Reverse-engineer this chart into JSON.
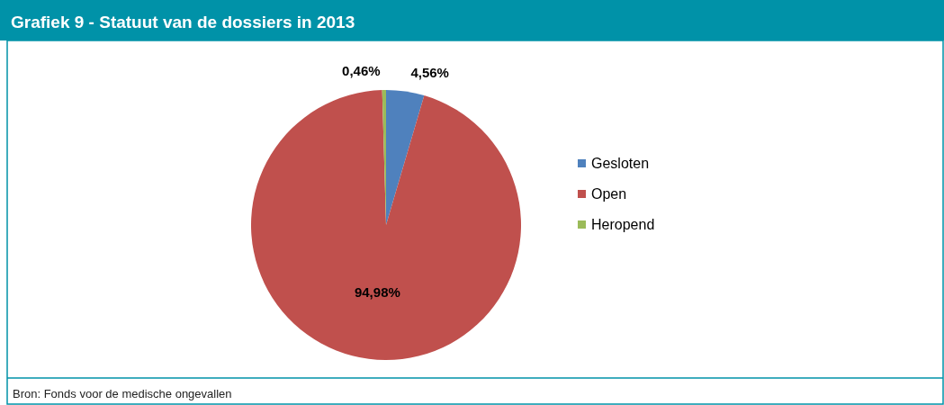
{
  "chart_data": {
    "type": "pie",
    "title": "Grafiek 9 - Statuut van de dossiers in 2013",
    "categories": [
      "Gesloten",
      "Open",
      "Heropend"
    ],
    "values": [
      4.56,
      94.98,
      0.46
    ],
    "colors": [
      "#4f81bd",
      "#c0504d",
      "#9bbb59"
    ],
    "value_labels": [
      "4,56%",
      "94,98%",
      "0,46%"
    ],
    "legend": "right",
    "annotations": [
      "Bron: Fonds voor de medische ongevallen"
    ]
  }
}
